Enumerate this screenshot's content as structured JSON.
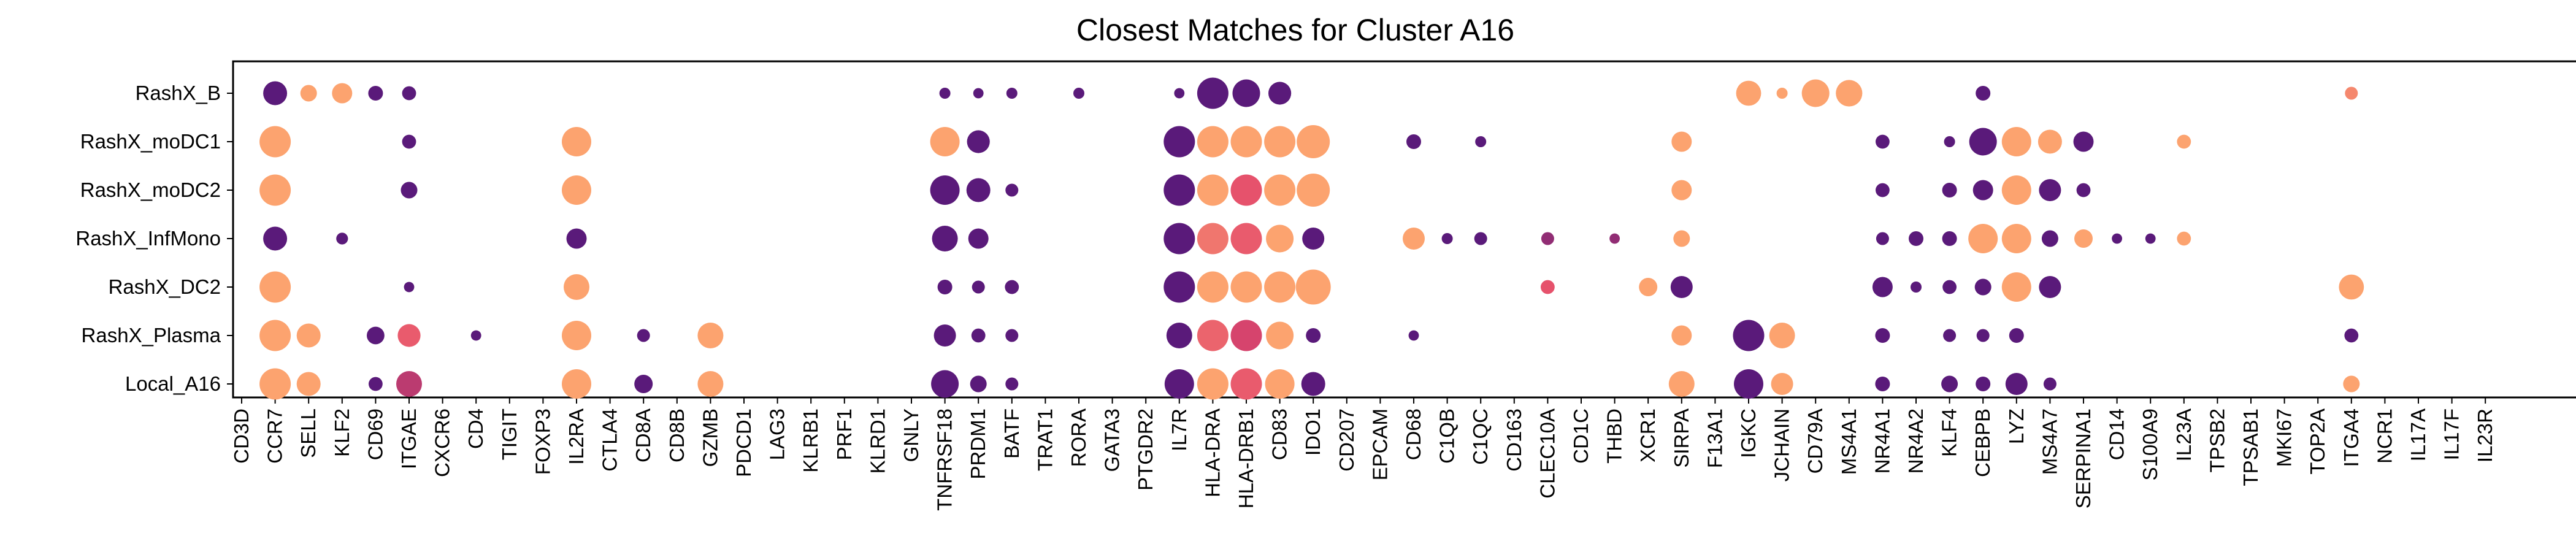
{
  "chart_data": {
    "type": "dot",
    "title": "Closest Matches for Cluster A16",
    "xlabel": "",
    "ylabel": "",
    "grid": false,
    "legend": "none",
    "color_scale": {
      "palette": "magma",
      "low": "#5a1a7a",
      "mid": "#e4496c",
      "high": "#fca36f"
    },
    "rows": [
      "RashX_B",
      "RashX_moDC1",
      "RashX_moDC2",
      "RashX_InfMono",
      "RashX_DC2",
      "RashX_Plasma",
      "Local_A16"
    ],
    "genes": [
      "CD3D",
      "CCR7",
      "SELL",
      "KLF2",
      "CD69",
      "ITGAE",
      "CXCR6",
      "CD4",
      "TIGIT",
      "FOXP3",
      "IL2RA",
      "CTLA4",
      "CD8A",
      "CD8B",
      "GZMB",
      "PDCD1",
      "LAG3",
      "KLRB1",
      "PRF1",
      "KLRD1",
      "GNLY",
      "TNFRSF18",
      "PRDM1",
      "BATF",
      "TRAT1",
      "RORA",
      "GATA3",
      "PTGDR2",
      "IL7R",
      "HLA-DRA",
      "HLA-DRB1",
      "CD83",
      "IDO1",
      "CD207",
      "EPCAM",
      "CD68",
      "C1QB",
      "C1QC",
      "CD163",
      "CLEC10A",
      "CD1C",
      "THBD",
      "XCR1",
      "SIRPA",
      "F13A1",
      "IGKC",
      "JCHAIN",
      "CD79A",
      "MS4A1",
      "NR4A1",
      "NR4A2",
      "KLF4",
      "CEBPB",
      "LYZ",
      "MS4A7",
      "SERPINA1",
      "CD14",
      "S100A9",
      "IL23A",
      "TPSB2",
      "TPSAB1",
      "MKI67",
      "TOP2A",
      "ITGA4",
      "NCR1",
      "IL17A",
      "IL17F",
      "IL23R"
    ],
    "points": [
      {
        "row": "RashX_B",
        "gene": "CCR7",
        "size": 0.65,
        "color": 0.0
      },
      {
        "row": "RashX_B",
        "gene": "SELL",
        "size": 0.45,
        "color": 1.0
      },
      {
        "row": "RashX_B",
        "gene": "KLF2",
        "size": 0.55,
        "color": 1.0
      },
      {
        "row": "RashX_B",
        "gene": "CD69",
        "size": 0.4,
        "color": 0.0
      },
      {
        "row": "RashX_B",
        "gene": "ITGAE",
        "size": 0.38,
        "color": 0.0
      },
      {
        "row": "RashX_B",
        "gene": "TNFRSF18",
        "size": 0.3,
        "color": 0.0
      },
      {
        "row": "RashX_B",
        "gene": "PRDM1",
        "size": 0.28,
        "color": 0.0
      },
      {
        "row": "RashX_B",
        "gene": "BATF",
        "size": 0.3,
        "color": 0.0
      },
      {
        "row": "RashX_B",
        "gene": "RORA",
        "size": 0.3,
        "color": 0.0
      },
      {
        "row": "RashX_B",
        "gene": "IL7R",
        "size": 0.28,
        "color": 0.0
      },
      {
        "row": "RashX_B",
        "gene": "HLA-DRA",
        "size": 0.85,
        "color": 0.0
      },
      {
        "row": "RashX_B",
        "gene": "HLA-DRB1",
        "size": 0.75,
        "color": 0.0
      },
      {
        "row": "RashX_B",
        "gene": "CD83",
        "size": 0.62,
        "color": 0.0
      },
      {
        "row": "RashX_B",
        "gene": "IGKC",
        "size": 0.68,
        "color": 1.0
      },
      {
        "row": "RashX_B",
        "gene": "JCHAIN",
        "size": 0.3,
        "color": 1.0
      },
      {
        "row": "RashX_B",
        "gene": "CD79A",
        "size": 0.75,
        "color": 1.0
      },
      {
        "row": "RashX_B",
        "gene": "MS4A1",
        "size": 0.72,
        "color": 1.0
      },
      {
        "row": "RashX_B",
        "gene": "CEBPB",
        "size": 0.4,
        "color": 0.0
      },
      {
        "row": "RashX_B",
        "gene": "ITGA4",
        "size": 0.35,
        "color": 0.85
      },
      {
        "row": "RashX_moDC1",
        "gene": "CCR7",
        "size": 0.85,
        "color": 1.0
      },
      {
        "row": "RashX_moDC1",
        "gene": "ITGAE",
        "size": 0.38,
        "color": 0.0
      },
      {
        "row": "RashX_moDC1",
        "gene": "IL2RA",
        "size": 0.8,
        "color": 1.0
      },
      {
        "row": "RashX_moDC1",
        "gene": "TNFRSF18",
        "size": 0.8,
        "color": 1.0
      },
      {
        "row": "RashX_moDC1",
        "gene": "PRDM1",
        "size": 0.62,
        "color": 0.0
      },
      {
        "row": "RashX_moDC1",
        "gene": "IL7R",
        "size": 0.85,
        "color": 0.0
      },
      {
        "row": "RashX_moDC1",
        "gene": "HLA-DRA",
        "size": 0.85,
        "color": 1.0
      },
      {
        "row": "RashX_moDC1",
        "gene": "HLA-DRB1",
        "size": 0.85,
        "color": 1.0
      },
      {
        "row": "RashX_moDC1",
        "gene": "CD83",
        "size": 0.85,
        "color": 1.0
      },
      {
        "row": "RashX_moDC1",
        "gene": "IDO1",
        "size": 0.9,
        "color": 1.0
      },
      {
        "row": "RashX_moDC1",
        "gene": "CD68",
        "size": 0.4,
        "color": 0.0
      },
      {
        "row": "RashX_moDC1",
        "gene": "C1QC",
        "size": 0.3,
        "color": 0.0
      },
      {
        "row": "RashX_moDC1",
        "gene": "SIRPA",
        "size": 0.55,
        "color": 1.0
      },
      {
        "row": "RashX_moDC1",
        "gene": "NR4A1",
        "size": 0.38,
        "color": 0.0
      },
      {
        "row": "RashX_moDC1",
        "gene": "KLF4",
        "size": 0.3,
        "color": 0.0
      },
      {
        "row": "RashX_moDC1",
        "gene": "CEBPB",
        "size": 0.75,
        "color": 0.0
      },
      {
        "row": "RashX_moDC1",
        "gene": "LYZ",
        "size": 0.8,
        "color": 1.0
      },
      {
        "row": "RashX_moDC1",
        "gene": "MS4A7",
        "size": 0.65,
        "color": 1.0
      },
      {
        "row": "RashX_moDC1",
        "gene": "SERPINA1",
        "size": 0.55,
        "color": 0.0
      },
      {
        "row": "RashX_moDC1",
        "gene": "IL23A",
        "size": 0.38,
        "color": 1.0
      },
      {
        "row": "RashX_moDC2",
        "gene": "CCR7",
        "size": 0.85,
        "color": 1.0
      },
      {
        "row": "RashX_moDC2",
        "gene": "ITGAE",
        "size": 0.45,
        "color": 0.0
      },
      {
        "row": "RashX_moDC2",
        "gene": "IL2RA",
        "size": 0.8,
        "color": 1.0
      },
      {
        "row": "RashX_moDC2",
        "gene": "TNFRSF18",
        "size": 0.8,
        "color": 0.0
      },
      {
        "row": "RashX_moDC2",
        "gene": "PRDM1",
        "size": 0.65,
        "color": 0.0
      },
      {
        "row": "RashX_moDC2",
        "gene": "BATF",
        "size": 0.35,
        "color": 0.0
      },
      {
        "row": "RashX_moDC2",
        "gene": "IL7R",
        "size": 0.85,
        "color": 0.0
      },
      {
        "row": "RashX_moDC2",
        "gene": "HLA-DRA",
        "size": 0.85,
        "color": 1.0
      },
      {
        "row": "RashX_moDC2",
        "gene": "HLA-DRB1",
        "size": 0.85,
        "color": 0.55
      },
      {
        "row": "RashX_moDC2",
        "gene": "CD83",
        "size": 0.85,
        "color": 1.0
      },
      {
        "row": "RashX_moDC2",
        "gene": "IDO1",
        "size": 0.9,
        "color": 1.0
      },
      {
        "row": "RashX_moDC2",
        "gene": "SIRPA",
        "size": 0.55,
        "color": 1.0
      },
      {
        "row": "RashX_moDC2",
        "gene": "NR4A1",
        "size": 0.38,
        "color": 0.0
      },
      {
        "row": "RashX_moDC2",
        "gene": "KLF4",
        "size": 0.4,
        "color": 0.0
      },
      {
        "row": "RashX_moDC2",
        "gene": "CEBPB",
        "size": 0.55,
        "color": 0.0
      },
      {
        "row": "RashX_moDC2",
        "gene": "LYZ",
        "size": 0.8,
        "color": 1.0
      },
      {
        "row": "RashX_moDC2",
        "gene": "MS4A7",
        "size": 0.6,
        "color": 0.0
      },
      {
        "row": "RashX_moDC2",
        "gene": "SERPINA1",
        "size": 0.38,
        "color": 0.0
      },
      {
        "row": "RashX_InfMono",
        "gene": "CCR7",
        "size": 0.65,
        "color": 0.0
      },
      {
        "row": "RashX_InfMono",
        "gene": "KLF2",
        "size": 0.32,
        "color": 0.0
      },
      {
        "row": "RashX_InfMono",
        "gene": "IL2RA",
        "size": 0.55,
        "color": 0.0
      },
      {
        "row": "RashX_InfMono",
        "gene": "TNFRSF18",
        "size": 0.7,
        "color": 0.0
      },
      {
        "row": "RashX_InfMono",
        "gene": "PRDM1",
        "size": 0.55,
        "color": 0.0
      },
      {
        "row": "RashX_InfMono",
        "gene": "IL7R",
        "size": 0.85,
        "color": 0.0
      },
      {
        "row": "RashX_InfMono",
        "gene": "HLA-DRA",
        "size": 0.85,
        "color": 0.75
      },
      {
        "row": "RashX_InfMono",
        "gene": "HLA-DRB1",
        "size": 0.85,
        "color": 0.6
      },
      {
        "row": "RashX_InfMono",
        "gene": "CD83",
        "size": 0.75,
        "color": 1.0
      },
      {
        "row": "RashX_InfMono",
        "gene": "IDO1",
        "size": 0.6,
        "color": 0.0
      },
      {
        "row": "RashX_InfMono",
        "gene": "CD68",
        "size": 0.6,
        "color": 1.0
      },
      {
        "row": "RashX_InfMono",
        "gene": "C1QB",
        "size": 0.3,
        "color": 0.0
      },
      {
        "row": "RashX_InfMono",
        "gene": "C1QC",
        "size": 0.35,
        "color": 0.0
      },
      {
        "row": "RashX_InfMono",
        "gene": "CLEC10A",
        "size": 0.35,
        "color": 0.2
      },
      {
        "row": "RashX_InfMono",
        "gene": "THBD",
        "size": 0.28,
        "color": 0.2
      },
      {
        "row": "RashX_InfMono",
        "gene": "SIRPA",
        "size": 0.45,
        "color": 1.0
      },
      {
        "row": "RashX_InfMono",
        "gene": "NR4A1",
        "size": 0.35,
        "color": 0.0
      },
      {
        "row": "RashX_InfMono",
        "gene": "NR4A2",
        "size": 0.4,
        "color": 0.0
      },
      {
        "row": "RashX_InfMono",
        "gene": "KLF4",
        "size": 0.4,
        "color": 0.0
      },
      {
        "row": "RashX_InfMono",
        "gene": "CEBPB",
        "size": 0.8,
        "color": 1.0
      },
      {
        "row": "RashX_InfMono",
        "gene": "LYZ",
        "size": 0.8,
        "color": 1.0
      },
      {
        "row": "RashX_InfMono",
        "gene": "MS4A7",
        "size": 0.45,
        "color": 0.0
      },
      {
        "row": "RashX_InfMono",
        "gene": "SERPINA1",
        "size": 0.5,
        "color": 1.0
      },
      {
        "row": "RashX_InfMono",
        "gene": "CD14",
        "size": 0.28,
        "color": 0.0
      },
      {
        "row": "RashX_InfMono",
        "gene": "S100A9",
        "size": 0.28,
        "color": 0.0
      },
      {
        "row": "RashX_InfMono",
        "gene": "IL23A",
        "size": 0.38,
        "color": 1.0
      },
      {
        "row": "RashX_DC2",
        "gene": "CCR7",
        "size": 0.85,
        "color": 1.0
      },
      {
        "row": "RashX_DC2",
        "gene": "ITGAE",
        "size": 0.28,
        "color": 0.0
      },
      {
        "row": "RashX_DC2",
        "gene": "IL2RA",
        "size": 0.7,
        "color": 1.0
      },
      {
        "row": "RashX_DC2",
        "gene": "TNFRSF18",
        "size": 0.4,
        "color": 0.0
      },
      {
        "row": "RashX_DC2",
        "gene": "PRDM1",
        "size": 0.35,
        "color": 0.0
      },
      {
        "row": "RashX_DC2",
        "gene": "BATF",
        "size": 0.38,
        "color": 0.0
      },
      {
        "row": "RashX_DC2",
        "gene": "IL7R",
        "size": 0.85,
        "color": 0.0
      },
      {
        "row": "RashX_DC2",
        "gene": "HLA-DRA",
        "size": 0.85,
        "color": 1.0
      },
      {
        "row": "RashX_DC2",
        "gene": "HLA-DRB1",
        "size": 0.85,
        "color": 1.0
      },
      {
        "row": "RashX_DC2",
        "gene": "CD83",
        "size": 0.85,
        "color": 1.0
      },
      {
        "row": "RashX_DC2",
        "gene": "IDO1",
        "size": 0.95,
        "color": 1.0
      },
      {
        "row": "RashX_DC2",
        "gene": "CLEC10A",
        "size": 0.38,
        "color": 0.55
      },
      {
        "row": "RashX_DC2",
        "gene": "XCR1",
        "size": 0.5,
        "color": 1.0
      },
      {
        "row": "RashX_DC2",
        "gene": "SIRPA",
        "size": 0.6,
        "color": 0.0
      },
      {
        "row": "RashX_DC2",
        "gene": "NR4A1",
        "size": 0.55,
        "color": 0.0
      },
      {
        "row": "RashX_DC2",
        "gene": "NR4A2",
        "size": 0.3,
        "color": 0.0
      },
      {
        "row": "RashX_DC2",
        "gene": "KLF4",
        "size": 0.38,
        "color": 0.0
      },
      {
        "row": "RashX_DC2",
        "gene": "CEBPB",
        "size": 0.45,
        "color": 0.0
      },
      {
        "row": "RashX_DC2",
        "gene": "LYZ",
        "size": 0.8,
        "color": 1.0
      },
      {
        "row": "RashX_DC2",
        "gene": "MS4A7",
        "size": 0.6,
        "color": 0.0
      },
      {
        "row": "RashX_DC2",
        "gene": "ITGA4",
        "size": 0.68,
        "color": 1.0
      },
      {
        "row": "RashX_Plasma",
        "gene": "CCR7",
        "size": 0.85,
        "color": 1.0
      },
      {
        "row": "RashX_Plasma",
        "gene": "SELL",
        "size": 0.65,
        "color": 1.0
      },
      {
        "row": "RashX_Plasma",
        "gene": "CD69",
        "size": 0.48,
        "color": 0.0
      },
      {
        "row": "RashX_Plasma",
        "gene": "ITGAE",
        "size": 0.62,
        "color": 0.6
      },
      {
        "row": "RashX_Plasma",
        "gene": "CD4",
        "size": 0.28,
        "color": 0.0
      },
      {
        "row": "RashX_Plasma",
        "gene": "IL2RA",
        "size": 0.8,
        "color": 1.0
      },
      {
        "row": "RashX_Plasma",
        "gene": "CD8A",
        "size": 0.35,
        "color": 0.0
      },
      {
        "row": "RashX_Plasma",
        "gene": "GZMB",
        "size": 0.7,
        "color": 1.0
      },
      {
        "row": "RashX_Plasma",
        "gene": "TNFRSF18",
        "size": 0.6,
        "color": 0.0
      },
      {
        "row": "RashX_Plasma",
        "gene": "PRDM1",
        "size": 0.38,
        "color": 0.0
      },
      {
        "row": "RashX_Plasma",
        "gene": "BATF",
        "size": 0.35,
        "color": 0.0
      },
      {
        "row": "RashX_Plasma",
        "gene": "IL7R",
        "size": 0.7,
        "color": 0.0
      },
      {
        "row": "RashX_Plasma",
        "gene": "HLA-DRA",
        "size": 0.85,
        "color": 0.65
      },
      {
        "row": "RashX_Plasma",
        "gene": "HLA-DRB1",
        "size": 0.85,
        "color": 0.45
      },
      {
        "row": "RashX_Plasma",
        "gene": "CD83",
        "size": 0.75,
        "color": 1.0
      },
      {
        "row": "RashX_Plasma",
        "gene": "IDO1",
        "size": 0.4,
        "color": 0.0
      },
      {
        "row": "RashX_Plasma",
        "gene": "CD68",
        "size": 0.28,
        "color": 0.0
      },
      {
        "row": "RashX_Plasma",
        "gene": "SIRPA",
        "size": 0.55,
        "color": 1.0
      },
      {
        "row": "RashX_Plasma",
        "gene": "IGKC",
        "size": 0.85,
        "color": 0.0
      },
      {
        "row": "RashX_Plasma",
        "gene": "JCHAIN",
        "size": 0.7,
        "color": 1.0
      },
      {
        "row": "RashX_Plasma",
        "gene": "NR4A1",
        "size": 0.4,
        "color": 0.0
      },
      {
        "row": "RashX_Plasma",
        "gene": "KLF4",
        "size": 0.35,
        "color": 0.0
      },
      {
        "row": "RashX_Plasma",
        "gene": "CEBPB",
        "size": 0.35,
        "color": 0.0
      },
      {
        "row": "RashX_Plasma",
        "gene": "LYZ",
        "size": 0.4,
        "color": 0.0
      },
      {
        "row": "RashX_Plasma",
        "gene": "ITGA4",
        "size": 0.38,
        "color": 0.0
      },
      {
        "row": "Local_A16",
        "gene": "CCR7",
        "size": 0.85,
        "color": 1.0
      },
      {
        "row": "Local_A16",
        "gene": "SELL",
        "size": 0.65,
        "color": 1.0
      },
      {
        "row": "Local_A16",
        "gene": "CD69",
        "size": 0.38,
        "color": 0.0
      },
      {
        "row": "Local_A16",
        "gene": "ITGAE",
        "size": 0.7,
        "color": 0.35
      },
      {
        "row": "Local_A16",
        "gene": "IL2RA",
        "size": 0.8,
        "color": 1.0
      },
      {
        "row": "Local_A16",
        "gene": "CD8A",
        "size": 0.5,
        "color": 0.0
      },
      {
        "row": "Local_A16",
        "gene": "GZMB",
        "size": 0.7,
        "color": 1.0
      },
      {
        "row": "Local_A16",
        "gene": "TNFRSF18",
        "size": 0.75,
        "color": 0.0
      },
      {
        "row": "Local_A16",
        "gene": "PRDM1",
        "size": 0.45,
        "color": 0.0
      },
      {
        "row": "Local_A16",
        "gene": "BATF",
        "size": 0.35,
        "color": 0.0
      },
      {
        "row": "Local_A16",
        "gene": "IL7R",
        "size": 0.8,
        "color": 0.0
      },
      {
        "row": "Local_A16",
        "gene": "HLA-DRA",
        "size": 0.85,
        "color": 1.0
      },
      {
        "row": "Local_A16",
        "gene": "HLA-DRB1",
        "size": 0.85,
        "color": 0.6
      },
      {
        "row": "Local_A16",
        "gene": "CD83",
        "size": 0.8,
        "color": 1.0
      },
      {
        "row": "Local_A16",
        "gene": "IDO1",
        "size": 0.65,
        "color": 0.0
      },
      {
        "row": "Local_A16",
        "gene": "SIRPA",
        "size": 0.7,
        "color": 1.0
      },
      {
        "row": "Local_A16",
        "gene": "IGKC",
        "size": 0.8,
        "color": 0.0
      },
      {
        "row": "Local_A16",
        "gene": "JCHAIN",
        "size": 0.6,
        "color": 1.0
      },
      {
        "row": "Local_A16",
        "gene": "NR4A1",
        "size": 0.4,
        "color": 0.0
      },
      {
        "row": "Local_A16",
        "gene": "KLF4",
        "size": 0.45,
        "color": 0.0
      },
      {
        "row": "Local_A16",
        "gene": "CEBPB",
        "size": 0.4,
        "color": 0.0
      },
      {
        "row": "Local_A16",
        "gene": "LYZ",
        "size": 0.6,
        "color": 0.0
      },
      {
        "row": "Local_A16",
        "gene": "MS4A7",
        "size": 0.35,
        "color": 0.0
      },
      {
        "row": "Local_A16",
        "gene": "ITGA4",
        "size": 0.45,
        "color": 1.0
      }
    ]
  }
}
